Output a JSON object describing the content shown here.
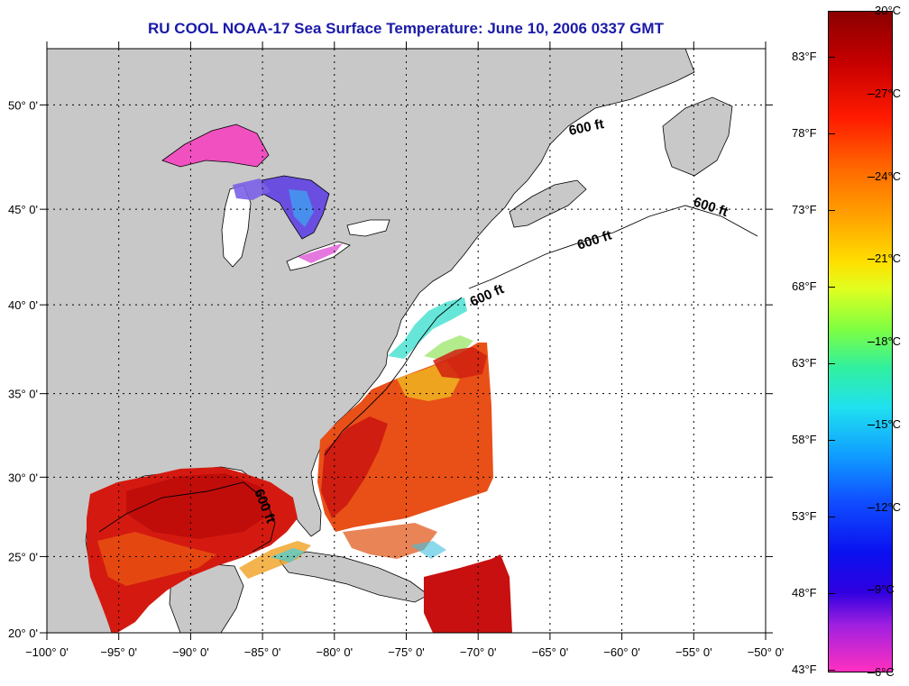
{
  "title": "RU COOL  NOAA-17  Sea Surface Temperature:  June 10, 2006 0337 GMT",
  "lat_ticks": [
    {
      "value": 50,
      "label": "50° 0'"
    },
    {
      "value": 45,
      "label": "45° 0'"
    },
    {
      "value": 40,
      "label": "40° 0'"
    },
    {
      "value": 35,
      "label": "35° 0'"
    },
    {
      "value": 30,
      "label": "30° 0'"
    },
    {
      "value": 25,
      "label": "25° 0'"
    },
    {
      "value": 20,
      "label": "20° 0'"
    }
  ],
  "lon_ticks": [
    {
      "value": -100,
      "label": "−100° 0'"
    },
    {
      "value": -95,
      "label": "−95° 0'"
    },
    {
      "value": -90,
      "label": "−90° 0'"
    },
    {
      "value": -85,
      "label": "−85° 0'"
    },
    {
      "value": -80,
      "label": "−80° 0'"
    },
    {
      "value": -75,
      "label": "−75° 0'"
    },
    {
      "value": -70,
      "label": "−70° 0'"
    },
    {
      "value": -65,
      "label": "−65° 0'"
    },
    {
      "value": -60,
      "label": "−60° 0'"
    },
    {
      "value": -55,
      "label": "−55° 0'"
    },
    {
      "value": -50,
      "label": "−50° 0'"
    }
  ],
  "extent": {
    "lon_min": -100,
    "lon_max": -50,
    "lat_min": 20,
    "lat_max": 52.5
  },
  "isobath_labels": [
    "600 ft",
    "600 ft",
    "600 ft",
    "600 ft",
    "600 ft"
  ],
  "colorbar": {
    "fahrenheit": [
      "83°F",
      "78°F",
      "73°F",
      "68°F",
      "63°F",
      "58°F",
      "53°F",
      "48°F",
      "43°F"
    ],
    "celsius": [
      "30°C",
      "27°C",
      "24°C",
      "21°C",
      "18°C",
      "15°C",
      "12°C",
      "9°C",
      "6°C"
    ],
    "range_c": [
      6,
      30
    ]
  },
  "colors": {
    "land": "#c8c8c8",
    "no_data": "#ffffff",
    "title": "#1a1aa8",
    "warm": "#d81a10",
    "hot": "#c00000",
    "orange": "#f07010"
  }
}
